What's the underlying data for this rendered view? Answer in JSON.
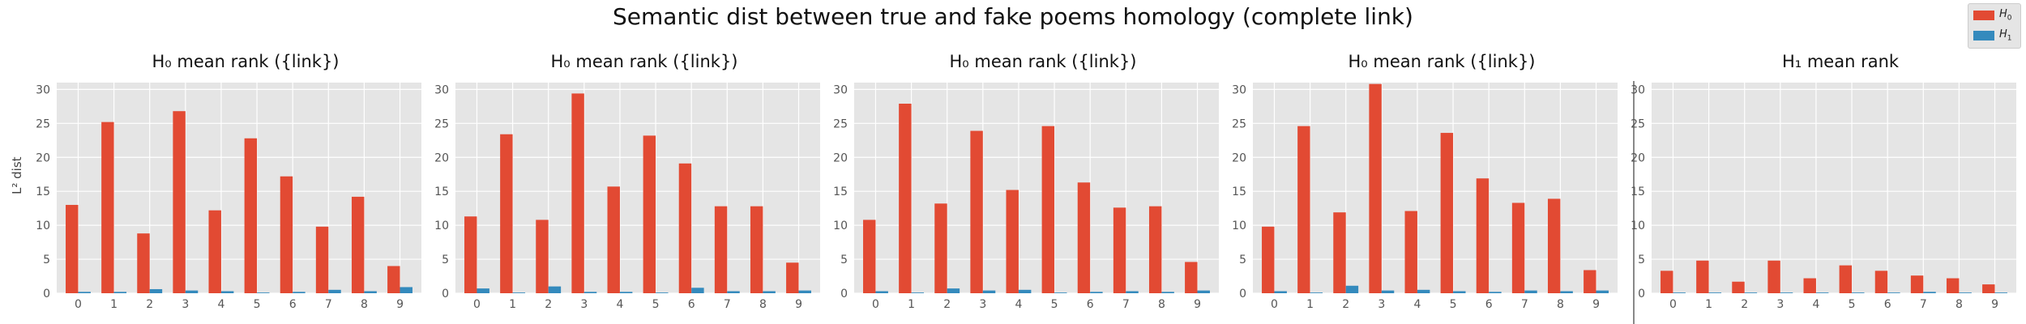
{
  "suptitle": "Semantic dist between true and fake poems homology (complete link)",
  "legend": {
    "items": [
      {
        "label": "H",
        "sub": "0",
        "color": "#e24a33"
      },
      {
        "label": "H",
        "sub": "1",
        "color": "#348abd"
      }
    ]
  },
  "ylabel": "L² dist",
  "colors": {
    "panel_bg": "#e5e5e5",
    "grid": "#ffffff",
    "h0": "#e24a33",
    "h1": "#348abd",
    "tick": "#555555"
  },
  "chart_data": [
    {
      "type": "bar",
      "title": "H₀ mean rank ({link})",
      "categories": [
        "0",
        "1",
        "2",
        "3",
        "4",
        "5",
        "6",
        "7",
        "8",
        "9"
      ],
      "series": [
        {
          "name": "H₀",
          "values": [
            13.0,
            25.2,
            8.8,
            26.8,
            12.2,
            22.8,
            17.2,
            9.8,
            14.2,
            4.0
          ]
        },
        {
          "name": "H₁",
          "values": [
            0.2,
            0.2,
            0.6,
            0.4,
            0.3,
            0.1,
            0.2,
            0.5,
            0.3,
            0.9
          ]
        }
      ],
      "yticks": [
        0,
        5,
        10,
        15,
        20,
        25,
        30
      ],
      "ylim": [
        0,
        31
      ]
    },
    {
      "type": "bar",
      "title": "H₀ mean rank ({link})",
      "categories": [
        "0",
        "1",
        "2",
        "3",
        "4",
        "5",
        "6",
        "7",
        "8",
        "9"
      ],
      "series": [
        {
          "name": "H₀",
          "values": [
            11.3,
            23.4,
            10.8,
            29.4,
            15.7,
            23.2,
            19.1,
            12.8,
            12.8,
            4.5
          ]
        },
        {
          "name": "H₁",
          "values": [
            0.7,
            0.1,
            1.0,
            0.2,
            0.2,
            0.1,
            0.8,
            0.3,
            0.3,
            0.4
          ]
        }
      ],
      "yticks": [
        0,
        5,
        10,
        15,
        20,
        25,
        30
      ],
      "ylim": [
        0,
        31
      ]
    },
    {
      "type": "bar",
      "title": "H₀ mean rank ({link})",
      "categories": [
        "0",
        "1",
        "2",
        "3",
        "4",
        "5",
        "6",
        "7",
        "8",
        "9"
      ],
      "series": [
        {
          "name": "H₀",
          "values": [
            10.8,
            27.9,
            13.2,
            23.9,
            15.2,
            24.6,
            16.3,
            12.6,
            12.8,
            4.6
          ]
        },
        {
          "name": "H₁",
          "values": [
            0.3,
            0.1,
            0.7,
            0.4,
            0.5,
            0.1,
            0.2,
            0.3,
            0.2,
            0.4
          ]
        }
      ],
      "yticks": [
        0,
        5,
        10,
        15,
        20,
        25,
        30
      ],
      "ylim": [
        0,
        31
      ]
    },
    {
      "type": "bar",
      "title": "H₀ mean rank ({link})",
      "categories": [
        "0",
        "1",
        "2",
        "3",
        "4",
        "5",
        "6",
        "7",
        "8",
        "9"
      ],
      "series": [
        {
          "name": "H₀",
          "values": [
            9.8,
            24.6,
            11.9,
            30.8,
            12.1,
            23.6,
            16.9,
            13.3,
            13.9,
            3.4
          ]
        },
        {
          "name": "H₁",
          "values": [
            0.3,
            0.1,
            1.1,
            0.4,
            0.5,
            0.3,
            0.2,
            0.4,
            0.3,
            0.4
          ]
        }
      ],
      "yticks": [
        0,
        5,
        10,
        15,
        20,
        25,
        30
      ],
      "ylim": [
        0,
        31
      ]
    },
    {
      "type": "bar",
      "title": "H₁ mean rank",
      "categories": [
        "0",
        "1",
        "2",
        "3",
        "4",
        "5",
        "6",
        "7",
        "8",
        "9"
      ],
      "series": [
        {
          "name": "H₀",
          "values": [
            3.3,
            4.8,
            1.7,
            4.8,
            2.2,
            4.1,
            3.3,
            2.6,
            2.2,
            1.3
          ]
        },
        {
          "name": "H₁",
          "values": [
            0.1,
            0.1,
            0.1,
            0.1,
            0.1,
            0.1,
            0.1,
            0.2,
            0.1,
            0.1
          ]
        }
      ],
      "yticks": [
        0,
        5,
        10,
        15,
        20,
        25,
        30
      ],
      "ylim": [
        0,
        31
      ]
    }
  ]
}
